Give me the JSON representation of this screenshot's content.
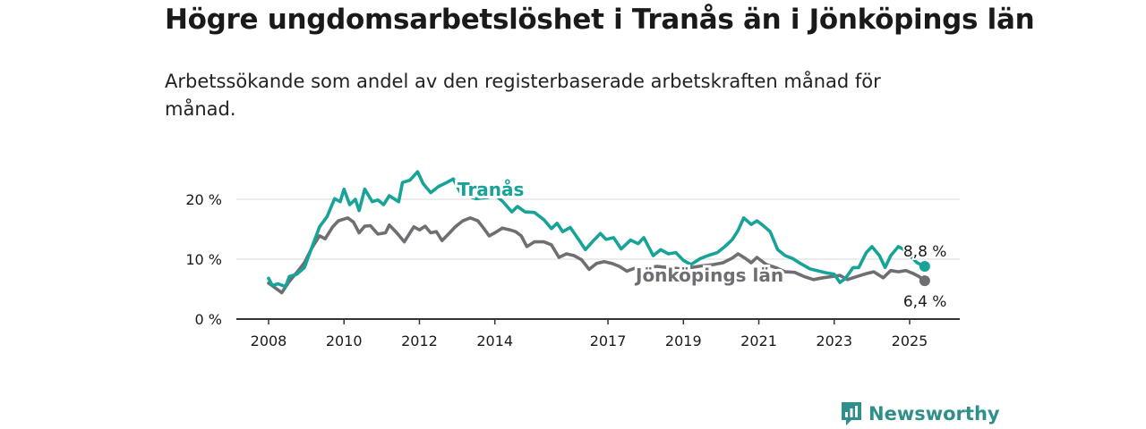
{
  "header": {
    "title": "Högre ungdomsarbetslöshet i Tranås än i Jönköpings län",
    "subtitle": "Arbetssökande som andel av den registerbaserade arbetskraften månad för månad."
  },
  "brand": {
    "name": "Newsworthy",
    "icon": "newsworthy-logo-icon"
  },
  "colors": {
    "tranas": "#17a398",
    "lan": "#6e6e73",
    "grid": "#d9d9d9",
    "axis": "#333333"
  },
  "chart_data": {
    "type": "line",
    "xlabel": "",
    "ylabel": "",
    "xlim": [
      2008,
      2025.7
    ],
    "ylim": [
      0,
      20
    ],
    "y_ticks": [
      {
        "value": 0,
        "label": "0 %"
      },
      {
        "value": 10,
        "label": "10 %"
      },
      {
        "value": 20,
        "label": "20 %"
      }
    ],
    "x_ticks": [
      {
        "value": 2008,
        "label": "2008"
      },
      {
        "value": 2010,
        "label": "2010"
      },
      {
        "value": 2012,
        "label": "2012"
      },
      {
        "value": 2014,
        "label": "2014"
      },
      {
        "value": 2017,
        "label": "2017"
      },
      {
        "value": 2019,
        "label": "2019"
      },
      {
        "value": 2021,
        "label": "2021"
      },
      {
        "value": 2023,
        "label": "2023"
      },
      {
        "value": 2025,
        "label": "2025"
      }
    ],
    "grid": true,
    "series": [
      {
        "name": "Tranås",
        "end_label": "8,8 %",
        "points": [
          [
            2008.0,
            6.8
          ],
          [
            2008.1,
            5.6
          ],
          [
            2008.25,
            5.9
          ],
          [
            2008.45,
            5.4
          ],
          [
            2008.55,
            7.1
          ],
          [
            2008.75,
            7.5
          ],
          [
            2008.95,
            8.6
          ],
          [
            2009.15,
            12.0
          ],
          [
            2009.35,
            15.4
          ],
          [
            2009.55,
            17.1
          ],
          [
            2009.75,
            20.1
          ],
          [
            2009.9,
            19.6
          ],
          [
            2010.0,
            21.7
          ],
          [
            2010.15,
            19.1
          ],
          [
            2010.3,
            20.0
          ],
          [
            2010.4,
            18.1
          ],
          [
            2010.55,
            21.7
          ],
          [
            2010.75,
            19.6
          ],
          [
            2010.9,
            19.9
          ],
          [
            2011.05,
            19.1
          ],
          [
            2011.2,
            20.6
          ],
          [
            2011.45,
            19.6
          ],
          [
            2011.55,
            22.8
          ],
          [
            2011.75,
            23.2
          ],
          [
            2011.95,
            24.6
          ],
          [
            2012.1,
            22.6
          ],
          [
            2012.3,
            21.1
          ],
          [
            2012.5,
            22.1
          ],
          [
            2012.75,
            22.9
          ],
          [
            2012.9,
            23.4
          ],
          [
            2013.1,
            21.0
          ],
          [
            2013.5,
            20.1
          ],
          [
            2013.8,
            20.3
          ],
          [
            2014.0,
            20.7
          ],
          [
            2014.2,
            19.7
          ],
          [
            2014.45,
            17.9
          ],
          [
            2014.6,
            18.8
          ],
          [
            2014.8,
            17.9
          ],
          [
            2015.05,
            17.8
          ],
          [
            2015.3,
            16.6
          ],
          [
            2015.5,
            15.1
          ],
          [
            2015.65,
            16.0
          ],
          [
            2015.8,
            14.6
          ],
          [
            2016.0,
            15.3
          ],
          [
            2016.2,
            13.5
          ],
          [
            2016.4,
            11.6
          ],
          [
            2016.6,
            13.0
          ],
          [
            2016.8,
            14.3
          ],
          [
            2016.95,
            13.3
          ],
          [
            2017.15,
            13.6
          ],
          [
            2017.35,
            11.7
          ],
          [
            2017.6,
            13.2
          ],
          [
            2017.8,
            12.6
          ],
          [
            2017.95,
            13.6
          ],
          [
            2018.2,
            10.6
          ],
          [
            2018.4,
            11.6
          ],
          [
            2018.6,
            10.9
          ],
          [
            2018.8,
            11.1
          ],
          [
            2019.0,
            9.8
          ],
          [
            2019.2,
            9.1
          ],
          [
            2019.45,
            10.1
          ],
          [
            2019.65,
            10.6
          ],
          [
            2019.9,
            11.1
          ],
          [
            2020.1,
            12.1
          ],
          [
            2020.3,
            13.3
          ],
          [
            2020.45,
            14.8
          ],
          [
            2020.6,
            16.9
          ],
          [
            2020.8,
            15.8
          ],
          [
            2020.95,
            16.4
          ],
          [
            2021.1,
            15.7
          ],
          [
            2021.3,
            14.6
          ],
          [
            2021.5,
            11.6
          ],
          [
            2021.7,
            10.6
          ],
          [
            2021.9,
            10.1
          ],
          [
            2022.1,
            9.3
          ],
          [
            2022.35,
            8.4
          ],
          [
            2022.6,
            8.0
          ],
          [
            2022.8,
            7.7
          ],
          [
            2023.0,
            7.5
          ],
          [
            2023.15,
            6.1
          ],
          [
            2023.3,
            6.8
          ],
          [
            2023.5,
            8.6
          ],
          [
            2023.65,
            8.6
          ],
          [
            2023.85,
            11.1
          ],
          [
            2024.0,
            12.1
          ],
          [
            2024.2,
            10.6
          ],
          [
            2024.35,
            8.6
          ],
          [
            2024.5,
            10.6
          ],
          [
            2024.7,
            12.1
          ],
          [
            2024.85,
            11.6
          ],
          [
            2025.2,
            9.4
          ],
          [
            2025.4,
            8.8
          ]
        ]
      },
      {
        "name": "Jönköpings län",
        "end_label": "6,4 %",
        "points": [
          [
            2008.0,
            6.0
          ],
          [
            2008.2,
            5.1
          ],
          [
            2008.35,
            4.4
          ],
          [
            2008.55,
            6.3
          ],
          [
            2008.75,
            7.8
          ],
          [
            2008.95,
            9.4
          ],
          [
            2009.15,
            11.9
          ],
          [
            2009.35,
            13.9
          ],
          [
            2009.5,
            13.4
          ],
          [
            2009.7,
            15.4
          ],
          [
            2009.85,
            16.4
          ],
          [
            2010.1,
            16.9
          ],
          [
            2010.25,
            16.2
          ],
          [
            2010.4,
            14.4
          ],
          [
            2010.55,
            15.5
          ],
          [
            2010.7,
            15.6
          ],
          [
            2010.9,
            14.2
          ],
          [
            2011.1,
            14.4
          ],
          [
            2011.2,
            15.7
          ],
          [
            2011.4,
            14.4
          ],
          [
            2011.6,
            12.9
          ],
          [
            2011.85,
            15.4
          ],
          [
            2012.0,
            14.9
          ],
          [
            2012.15,
            15.5
          ],
          [
            2012.3,
            14.4
          ],
          [
            2012.45,
            14.6
          ],
          [
            2012.6,
            13.1
          ],
          [
            2012.8,
            14.4
          ],
          [
            2012.95,
            15.4
          ],
          [
            2013.15,
            16.4
          ],
          [
            2013.35,
            16.9
          ],
          [
            2013.55,
            16.4
          ],
          [
            2013.7,
            15.2
          ],
          [
            2013.85,
            13.9
          ],
          [
            2014.0,
            14.4
          ],
          [
            2014.2,
            15.2
          ],
          [
            2014.4,
            14.9
          ],
          [
            2014.55,
            14.6
          ],
          [
            2014.7,
            13.9
          ],
          [
            2014.85,
            12.1
          ],
          [
            2015.05,
            12.9
          ],
          [
            2015.3,
            12.9
          ],
          [
            2015.5,
            12.4
          ],
          [
            2015.7,
            10.3
          ],
          [
            2015.9,
            10.9
          ],
          [
            2016.1,
            10.6
          ],
          [
            2016.3,
            9.9
          ],
          [
            2016.5,
            8.3
          ],
          [
            2016.7,
            9.3
          ],
          [
            2016.9,
            9.6
          ],
          [
            2017.1,
            9.3
          ],
          [
            2017.3,
            8.8
          ],
          [
            2017.5,
            8.0
          ],
          [
            2017.75,
            8.6
          ],
          [
            2018.0,
            8.6
          ],
          [
            2018.3,
            8.8
          ],
          [
            2018.6,
            8.6
          ],
          [
            2018.9,
            8.4
          ],
          [
            2019.2,
            8.6
          ],
          [
            2019.5,
            8.9
          ],
          [
            2019.8,
            9.1
          ],
          [
            2020.05,
            9.4
          ],
          [
            2020.3,
            10.2
          ],
          [
            2020.45,
            10.9
          ],
          [
            2020.65,
            10.1
          ],
          [
            2020.8,
            9.4
          ],
          [
            2020.95,
            10.3
          ],
          [
            2021.2,
            9.1
          ],
          [
            2021.45,
            8.6
          ],
          [
            2021.7,
            7.9
          ],
          [
            2021.95,
            7.8
          ],
          [
            2022.2,
            7.1
          ],
          [
            2022.45,
            6.6
          ],
          [
            2022.7,
            6.9
          ],
          [
            2022.95,
            7.1
          ],
          [
            2023.15,
            7.3
          ],
          [
            2023.35,
            6.6
          ],
          [
            2023.6,
            7.1
          ],
          [
            2023.85,
            7.6
          ],
          [
            2024.05,
            7.9
          ],
          [
            2024.3,
            6.9
          ],
          [
            2024.5,
            8.1
          ],
          [
            2024.7,
            7.9
          ],
          [
            2024.9,
            8.1
          ],
          [
            2025.1,
            7.6
          ],
          [
            2025.25,
            7.1
          ],
          [
            2025.4,
            6.4
          ]
        ]
      }
    ]
  }
}
